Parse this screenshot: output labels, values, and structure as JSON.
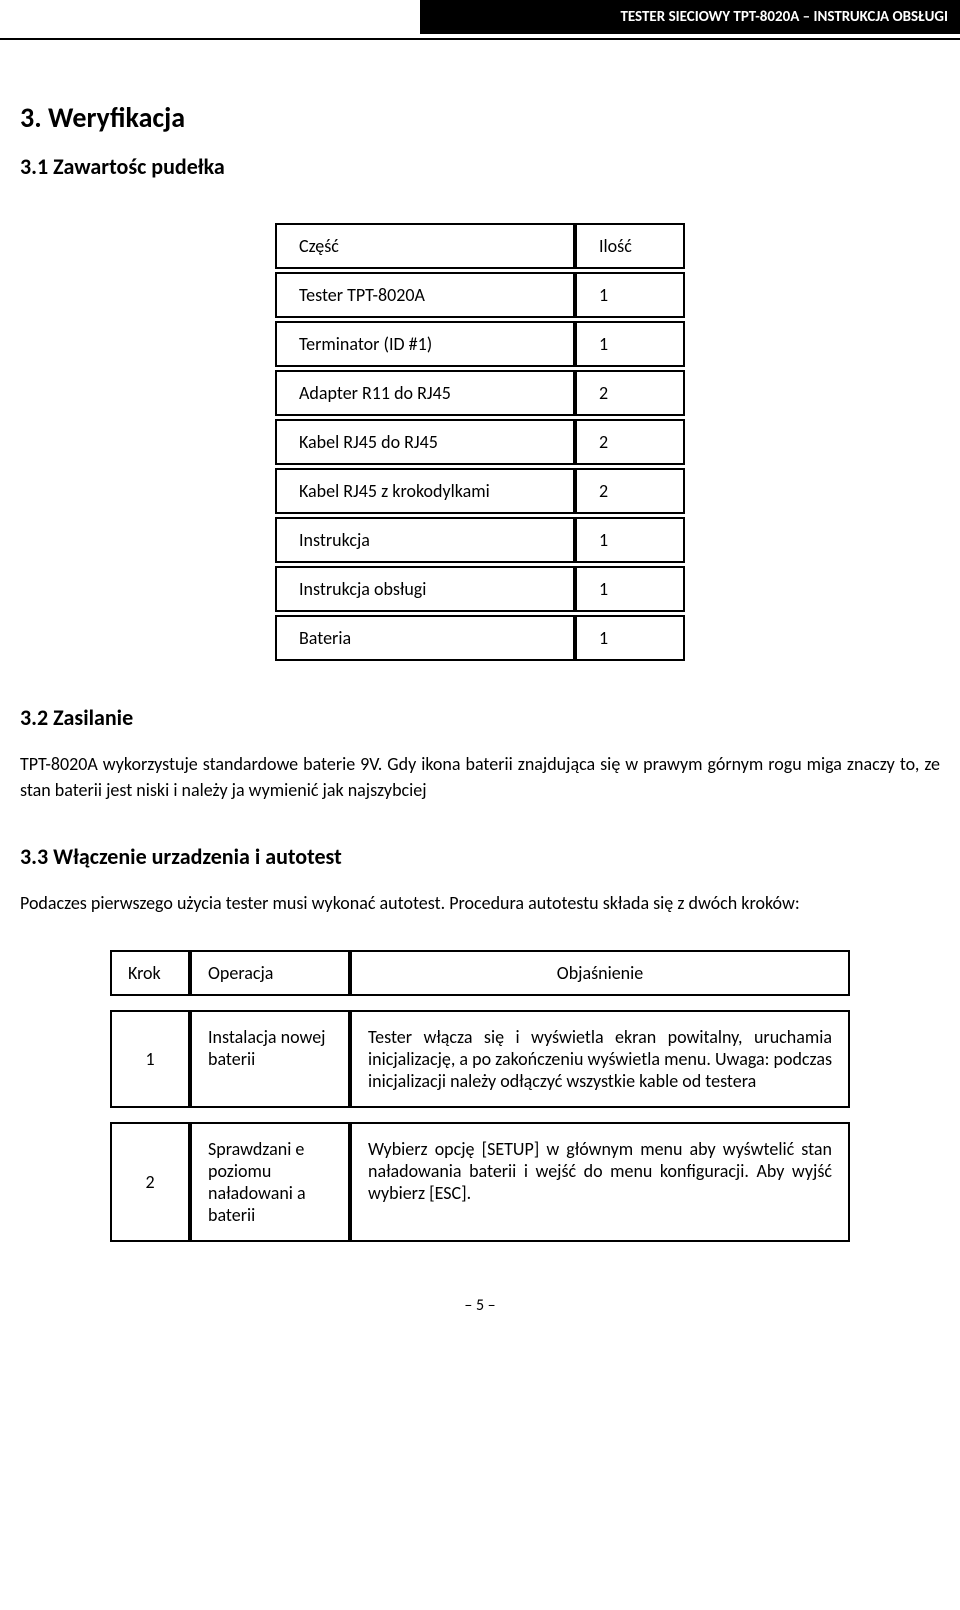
{
  "header": {
    "title": "TESTER SIECIOWY TPT-8020A – INSTRUKCJA OBSŁUGI"
  },
  "section3": {
    "heading": "3. Weryfikacja",
    "sub1_heading": "3.1 Zawartośc pudełka",
    "parts_table": {
      "headers": [
        "Część",
        "Ilość"
      ],
      "rows": [
        [
          "Tester TPT-8020A",
          "1"
        ],
        [
          "Terminator (ID #1)",
          "1"
        ],
        [
          "Adapter R11 do RJ45",
          "2"
        ],
        [
          "Kabel RJ45 do RJ45",
          "2"
        ],
        [
          "Kabel RJ45 z krokodylkami",
          "2"
        ],
        [
          "Instrukcja",
          "1"
        ],
        [
          "Instrukcja obsługi",
          "1"
        ],
        [
          "Bateria",
          "1"
        ]
      ]
    },
    "sub2_heading": "3.2 Zasilanie",
    "sub2_text": "TPT-8020A wykorzystuje standardowe baterie 9V. Gdy ikona baterii znajdująca się w prawym górnym rogu miga znaczy to, ze stan baterii jest niski i należy ja wymienić jak najszybciej",
    "sub3_heading": "3.3 Włączenie urzadzenia i autotest",
    "sub3_text": "Podaczes pierwszego użycia tester musi wykonać autotest. Procedura autotestu składa się z dwóch kroków:",
    "steps_table": {
      "headers": [
        "Krok",
        "Operacja",
        "Objaśnienie"
      ],
      "rows": [
        {
          "krok": "1",
          "operacja": "Instalacja nowej baterii",
          "objasnienie": "Tester włącza się i wyświetla ekran powitalny, uruchamia inicjalizację, a po zakończeniu wyświetla menu.\nUwaga: podczas inicjalizacji należy odłączyć wszystkie kable od testera"
        },
        {
          "krok": "2",
          "operacja": "Sprawdzani e poziomu naładowani a baterii",
          "objasnienie": "Wybierz opcję [SETUP] w głównym menu aby wyśwtelić stan naładowania baterii i wejść do menu konfiguracji. Aby wyjść wybierz [ESC]."
        }
      ]
    }
  },
  "page_number": "– 5 –"
}
